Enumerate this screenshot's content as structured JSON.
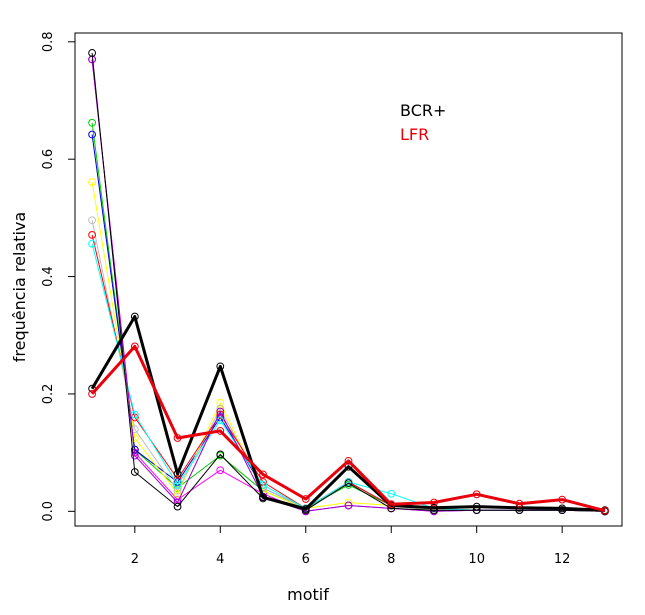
{
  "chart_data": {
    "type": "line",
    "xlabel": "motif",
    "ylabel": "frequência relativa",
    "x": [
      1,
      2,
      3,
      4,
      5,
      6,
      7,
      8,
      9,
      10,
      11,
      12,
      13
    ],
    "xlim": [
      0.6,
      13.4
    ],
    "ylim": [
      -0.025,
      0.815
    ],
    "xticks": [
      2,
      4,
      6,
      8,
      10,
      12
    ],
    "yticks": [
      0.0,
      0.2,
      0.4,
      0.6,
      0.8
    ],
    "ytick_labels": [
      "0.0",
      "0.2",
      "0.4",
      "0.6",
      "0.8"
    ],
    "legend": {
      "placement": "top-right",
      "entries": [
        {
          "label": "BCR+",
          "color": "#000000"
        },
        {
          "label": "LFR",
          "color": "#e8000b"
        }
      ]
    },
    "series": [
      {
        "color": "#ff00ff",
        "width": 1,
        "values": [
          0.77,
          0.1,
          0.02,
          0.07,
          0.03,
          0.0,
          0.01,
          0.005,
          0.0,
          0.002,
          0.002,
          0.002,
          0.0
        ]
      },
      {
        "color": "#00cc00",
        "width": 1,
        "values": [
          0.662,
          0.105,
          0.04,
          0.095,
          0.035,
          0.005,
          0.045,
          0.01,
          0.002,
          0.002,
          0.002,
          0.002,
          0.0
        ]
      },
      {
        "color": "#0000cc",
        "width": 1,
        "values": [
          0.642,
          0.105,
          0.05,
          0.16,
          0.04,
          0.005,
          0.05,
          0.01,
          0.002,
          0.002,
          0.002,
          0.002,
          0.0
        ]
      },
      {
        "color": "#ffff00",
        "width": 1,
        "values": [
          0.561,
          0.125,
          0.03,
          0.185,
          0.035,
          0.005,
          0.015,
          0.01,
          0.002,
          0.002,
          0.002,
          0.002,
          0.0
        ]
      },
      {
        "color": "#bebebe",
        "width": 1,
        "values": [
          0.496,
          0.14,
          0.035,
          0.175,
          0.04,
          0.005,
          0.05,
          0.01,
          0.002,
          0.002,
          0.002,
          0.002,
          0.0
        ]
      },
      {
        "color": "#ff0000",
        "width": 1,
        "values": [
          0.471,
          0.16,
          0.055,
          0.165,
          0.05,
          0.005,
          0.05,
          0.01,
          0.005,
          0.002,
          0.002,
          0.002,
          0.0
        ]
      },
      {
        "color": "#00ffff",
        "width": 1,
        "values": [
          0.456,
          0.165,
          0.045,
          0.155,
          0.045,
          0.005,
          0.05,
          0.03,
          0.005,
          0.002,
          0.002,
          0.002,
          0.0
        ]
      },
      {
        "color": "#9900cc",
        "width": 1,
        "values": [
          0.77,
          0.095,
          0.015,
          0.17,
          0.025,
          0.0,
          0.01,
          0.005,
          0.0,
          0.002,
          0.002,
          0.002,
          0.0
        ]
      },
      {
        "color": "#000000",
        "width": 1,
        "values": [
          0.781,
          0.067,
          0.008,
          0.097,
          0.022,
          0.002,
          0.048,
          0.005,
          0.002,
          0.002,
          0.002,
          0.002,
          0.0
        ]
      },
      {
        "name": "BCR+",
        "color": "#000000",
        "width": 3,
        "values": [
          0.209,
          0.332,
          0.064,
          0.247,
          0.024,
          0.004,
          0.076,
          0.01,
          0.006,
          0.008,
          0.006,
          0.005,
          0.002
        ]
      },
      {
        "name": "LFR",
        "color": "#e8000b",
        "width": 3,
        "values": [
          0.2,
          0.281,
          0.125,
          0.137,
          0.063,
          0.021,
          0.086,
          0.012,
          0.015,
          0.029,
          0.013,
          0.02,
          0.001
        ]
      }
    ]
  }
}
